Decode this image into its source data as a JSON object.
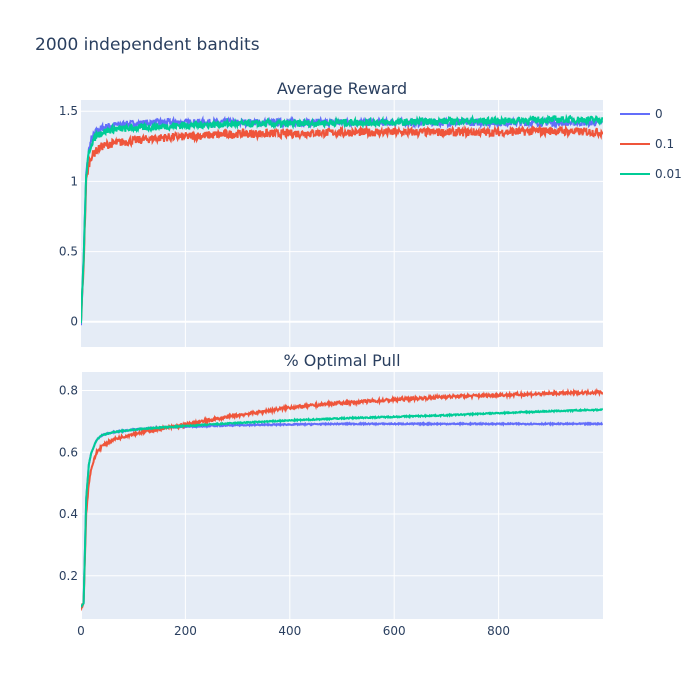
{
  "title": "2000 independent bandits",
  "colors": {
    "eps_0": "#636efa",
    "eps_0_1": "#ef553b",
    "eps_0_01": "#00cc96"
  },
  "legend": {
    "placement": "top-right",
    "entries": [
      "0",
      "0.1",
      "0.01"
    ]
  },
  "chart_data": [
    {
      "type": "line",
      "title": "Average Reward",
      "xlim": [
        0,
        1000
      ],
      "ylim": [
        -0.18,
        1.58
      ],
      "yticks": [
        0,
        0.5,
        1,
        1.5
      ],
      "ytick_labels": [
        "0",
        "0.5",
        "1",
        "1.5"
      ],
      "xticks": [
        200,
        400,
        600,
        800
      ],
      "grid": true,
      "series": [
        {
          "name": "0",
          "color": "#636efa",
          "x": [
            0,
            5,
            10,
            15,
            20,
            30,
            40,
            60,
            100,
            150,
            200,
            300,
            400,
            500,
            600,
            700,
            800,
            900,
            999
          ],
          "y": [
            0.0,
            0.45,
            1.05,
            1.22,
            1.3,
            1.36,
            1.38,
            1.4,
            1.41,
            1.42,
            1.42,
            1.42,
            1.42,
            1.42,
            1.42,
            1.42,
            1.42,
            1.42,
            1.42
          ],
          "noise": 0.025
        },
        {
          "name": "0.1",
          "color": "#ef553b",
          "x": [
            0,
            5,
            10,
            15,
            20,
            30,
            40,
            60,
            100,
            150,
            200,
            300,
            400,
            500,
            600,
            700,
            800,
            900,
            999
          ],
          "y": [
            0.0,
            0.4,
            1.0,
            1.12,
            1.18,
            1.22,
            1.25,
            1.27,
            1.29,
            1.31,
            1.32,
            1.34,
            1.34,
            1.35,
            1.35,
            1.35,
            1.35,
            1.36,
            1.35
          ],
          "noise": 0.03
        },
        {
          "name": "0.01",
          "color": "#00cc96",
          "x": [
            0,
            5,
            10,
            15,
            20,
            30,
            40,
            60,
            100,
            150,
            200,
            300,
            400,
            500,
            600,
            700,
            800,
            900,
            999
          ],
          "y": [
            0.0,
            0.45,
            1.05,
            1.2,
            1.27,
            1.33,
            1.35,
            1.37,
            1.38,
            1.39,
            1.4,
            1.41,
            1.41,
            1.42,
            1.42,
            1.43,
            1.43,
            1.44,
            1.44
          ],
          "noise": 0.025
        }
      ]
    },
    {
      "type": "line",
      "title": "% Optimal Pull",
      "xlim": [
        0,
        1000
      ],
      "ylim": [
        0.06,
        0.86
      ],
      "yticks": [
        0.2,
        0.4,
        0.6,
        0.8
      ],
      "ytick_labels": [
        "0.2",
        "0.4",
        "0.6",
        "0.8"
      ],
      "xticks": [
        0,
        200,
        400,
        600,
        800
      ],
      "xtick_labels": [
        "0",
        "200",
        "400",
        "600",
        "800"
      ],
      "grid": true,
      "series": [
        {
          "name": "0",
          "color": "#636efa",
          "x": [
            0,
            5,
            10,
            15,
            20,
            30,
            40,
            60,
            100,
            150,
            200,
            300,
            400,
            500,
            600,
            700,
            800,
            900,
            999
          ],
          "y": [
            0.1,
            0.11,
            0.45,
            0.56,
            0.6,
            0.64,
            0.655,
            0.665,
            0.673,
            0.68,
            0.683,
            0.688,
            0.69,
            0.692,
            0.692,
            0.692,
            0.692,
            0.692,
            0.692
          ],
          "noise": 0.002
        },
        {
          "name": "0.1",
          "color": "#ef553b",
          "x": [
            0,
            5,
            10,
            15,
            20,
            30,
            40,
            60,
            100,
            150,
            200,
            300,
            400,
            500,
            600,
            700,
            800,
            900,
            999
          ],
          "y": [
            0.1,
            0.11,
            0.4,
            0.5,
            0.55,
            0.6,
            0.62,
            0.64,
            0.66,
            0.675,
            0.69,
            0.72,
            0.745,
            0.76,
            0.77,
            0.78,
            0.785,
            0.79,
            0.795
          ],
          "noise": 0.005
        },
        {
          "name": "0.01",
          "color": "#00cc96",
          "x": [
            0,
            5,
            10,
            15,
            20,
            30,
            40,
            60,
            100,
            150,
            200,
            300,
            400,
            500,
            600,
            700,
            800,
            900,
            999
          ],
          "y": [
            0.1,
            0.11,
            0.45,
            0.56,
            0.6,
            0.64,
            0.655,
            0.665,
            0.673,
            0.68,
            0.685,
            0.695,
            0.703,
            0.71,
            0.715,
            0.72,
            0.727,
            0.733,
            0.738
          ],
          "noise": 0.002
        }
      ]
    }
  ]
}
